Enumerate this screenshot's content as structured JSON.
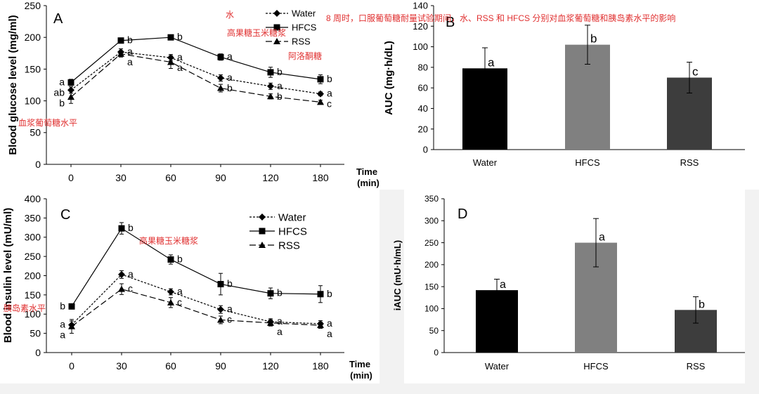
{
  "annotations": {
    "water_cn": "水",
    "title_cn": "8 周时，口服葡萄糖耐量试验期间，水、RSS 和 HFCS 分别对血浆葡萄糖和胰岛素水平的影响",
    "hfcs_cn": "高果糖玉米糖浆",
    "rss_cn": "阿洛酮糖",
    "glucose_cn": "血浆葡萄糖水平",
    "hfcs_cn_c": "高果糖玉米糖浆",
    "insulin_cn": "胰岛素水平"
  },
  "chart_data": [
    {
      "id": "A",
      "type": "line",
      "panel_label": "A",
      "ylabel": "Blood glucose level (mg/ml)",
      "xlabel": "Time (min)",
      "xlabel_lines": [
        "Time",
        "(min)"
      ],
      "x": [
        "0",
        "30",
        "60",
        "90",
        "120",
        "180"
      ],
      "ylim": [
        0,
        250
      ],
      "yticks": [
        0,
        50,
        100,
        150,
        200,
        250
      ],
      "legend_position": "top-right",
      "series": [
        {
          "name": "Water",
          "marker": "diamond",
          "dash": "dotted",
          "values": [
            117,
            177,
            168,
            136,
            123,
            111
          ],
          "err": [
            5,
            5,
            5,
            5,
            5,
            3
          ],
          "letters": [
            "ab",
            "a",
            "a",
            "a",
            "a",
            "a"
          ],
          "letter_side": [
            "left",
            "right",
            "right",
            "right",
            "right",
            "right"
          ]
        },
        {
          "name": "HFCS",
          "marker": "square",
          "dash": "solid",
          "values": [
            129,
            195,
            200,
            169,
            145,
            134
          ],
          "err": [
            5,
            4,
            3,
            5,
            8,
            7
          ],
          "letters": [
            "a",
            "b",
            "b",
            "a",
            "b",
            "b"
          ],
          "letter_side": [
            "left",
            "right",
            "right",
            "right",
            "right",
            "right"
          ]
        },
        {
          "name": "RSS",
          "marker": "triangle",
          "dash": "dashed",
          "values": [
            106,
            174,
            161,
            120,
            107,
            98
          ],
          "err": [
            10,
            5,
            10,
            6,
            4,
            3
          ],
          "letters": [
            "b",
            "a",
            "a",
            "b",
            "b",
            "c"
          ],
          "letter_side": [
            "left",
            "right",
            "right",
            "right",
            "right",
            "right"
          ]
        }
      ]
    },
    {
      "id": "B",
      "type": "bar",
      "panel_label": "B",
      "ylabel": "AUC (mg·h/dL)",
      "categories": [
        "Water",
        "HFCS",
        "RSS"
      ],
      "values": [
        79,
        102,
        70
      ],
      "err": [
        20,
        19,
        15
      ],
      "letters": [
        "a",
        "b",
        "c"
      ],
      "colors": [
        "#000000",
        "#808080",
        "#3d3d3d"
      ],
      "ylim": [
        0,
        140
      ],
      "yticks": [
        0,
        20,
        40,
        60,
        80,
        100,
        120,
        140
      ]
    },
    {
      "id": "C",
      "type": "line",
      "panel_label": "C",
      "ylabel": "Blood insulin level (mU/ml)",
      "xlabel": "Time (min)",
      "xlabel_lines": [
        "Time",
        "(min)"
      ],
      "x": [
        "0",
        "30",
        "60",
        "90",
        "120",
        "180"
      ],
      "ylim": [
        0,
        400
      ],
      "yticks": [
        0,
        50,
        100,
        150,
        200,
        250,
        300,
        350,
        400
      ],
      "legend_position": "top-right",
      "series": [
        {
          "name": "Water",
          "marker": "diamond",
          "dash": "dotted",
          "values": [
            72,
            203,
            158,
            112,
            80,
            75
          ],
          "err": [
            10,
            10,
            8,
            10,
            8,
            8
          ],
          "letters": [
            "a",
            "a",
            "a",
            "a",
            "a",
            "a"
          ],
          "letter_side": [
            "left",
            "right",
            "right",
            "right",
            "right",
            "right"
          ]
        },
        {
          "name": "HFCS",
          "marker": "square",
          "dash": "solid",
          "values": [
            120,
            323,
            242,
            178,
            154,
            152
          ],
          "err": [
            5,
            15,
            12,
            28,
            14,
            22
          ],
          "letters": [
            "b",
            "b",
            "b",
            "b",
            "b",
            "b"
          ],
          "letter_side": [
            "left",
            "right",
            "right",
            "right",
            "right",
            "right"
          ]
        },
        {
          "name": "RSS",
          "marker": "triangle",
          "dash": "dashed",
          "values": [
            68,
            165,
            130,
            85,
            77,
            71
          ],
          "err": [
            18,
            14,
            13,
            10,
            8,
            8
          ],
          "letters": [
            "a",
            "c",
            "c",
            "c",
            "a",
            "a"
          ],
          "letter_side": [
            "left",
            "right",
            "right",
            "right",
            "right",
            "right"
          ]
        }
      ]
    },
    {
      "id": "D",
      "type": "bar",
      "panel_label": "D",
      "ylabel": "iAUC (mU·h/mL)",
      "categories": [
        "Water",
        "HFCS",
        "RSS"
      ],
      "values": [
        142,
        250,
        97
      ],
      "err": [
        25,
        55,
        30
      ],
      "letters": [
        "a",
        "a",
        "b"
      ],
      "colors": [
        "#000000",
        "#808080",
        "#3d3d3d"
      ],
      "ylim": [
        0,
        350
      ],
      "yticks": [
        0,
        50,
        100,
        150,
        200,
        250,
        300,
        350
      ]
    }
  ]
}
